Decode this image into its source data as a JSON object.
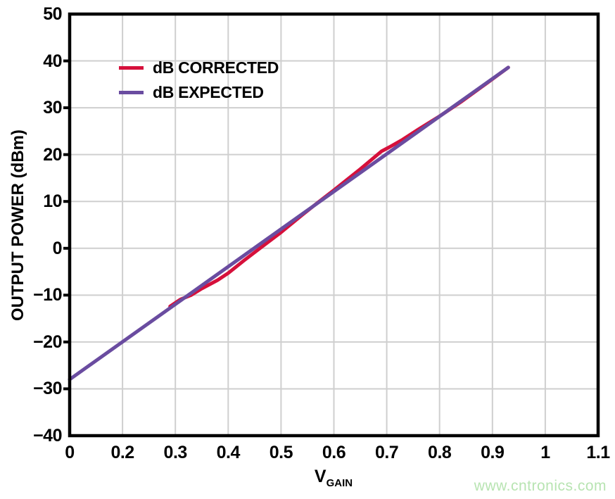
{
  "page": {
    "background": "#ffffff"
  },
  "watermark": {
    "text": "www.cntronics.com",
    "color": "#b8e4b2"
  },
  "chart_data": {
    "type": "line",
    "title": "",
    "xlabel_main": "V",
    "xlabel_sub": "GAIN",
    "ylabel": "OUTPUT POWER (dBm)",
    "ylim": [
      -40,
      50
    ],
    "y_ticks": [
      50,
      40,
      30,
      20,
      10,
      0,
      -10,
      -20,
      -30,
      -40
    ],
    "y_tick_labels": [
      "50",
      "40",
      "30",
      "20",
      "10",
      "0",
      "−10",
      "−20",
      "−30",
      "−40"
    ],
    "x_tick_labels": [
      "0",
      "0.2",
      "0.3",
      "0.4",
      "0.5",
      "0.6",
      "0.7",
      "0.8",
      "0.9",
      "1",
      "1.1"
    ],
    "grid": true,
    "grid_color": "#cfcfcf",
    "frame_color": "#000000",
    "legend_position": "top-left-inside",
    "series": [
      {
        "name": "dB CORRECTED",
        "color": "#d6103b",
        "points": [
          [
            0.29,
            -12.4
          ],
          [
            0.31,
            -10.9
          ],
          [
            0.33,
            -10.0
          ],
          [
            0.35,
            -8.6
          ],
          [
            0.38,
            -6.8
          ],
          [
            0.4,
            -5.3
          ],
          [
            0.43,
            -2.6
          ],
          [
            0.46,
            0.0
          ],
          [
            0.5,
            3.4
          ],
          [
            0.54,
            7.1
          ],
          [
            0.57,
            9.8
          ],
          [
            0.6,
            12.4
          ],
          [
            0.65,
            16.9
          ],
          [
            0.69,
            20.7
          ],
          [
            0.705,
            21.6
          ],
          [
            0.73,
            23.2
          ],
          [
            0.76,
            25.4
          ],
          [
            0.8,
            28.2
          ],
          [
            0.84,
            31.2
          ],
          [
            0.89,
            35.3
          ],
          [
            0.93,
            38.6
          ]
        ]
      },
      {
        "name": "dB EXPECTED",
        "color": "#6a4ca0",
        "points": [
          [
            0,
            -28.0
          ],
          [
            0.93,
            38.6
          ]
        ]
      }
    ]
  }
}
